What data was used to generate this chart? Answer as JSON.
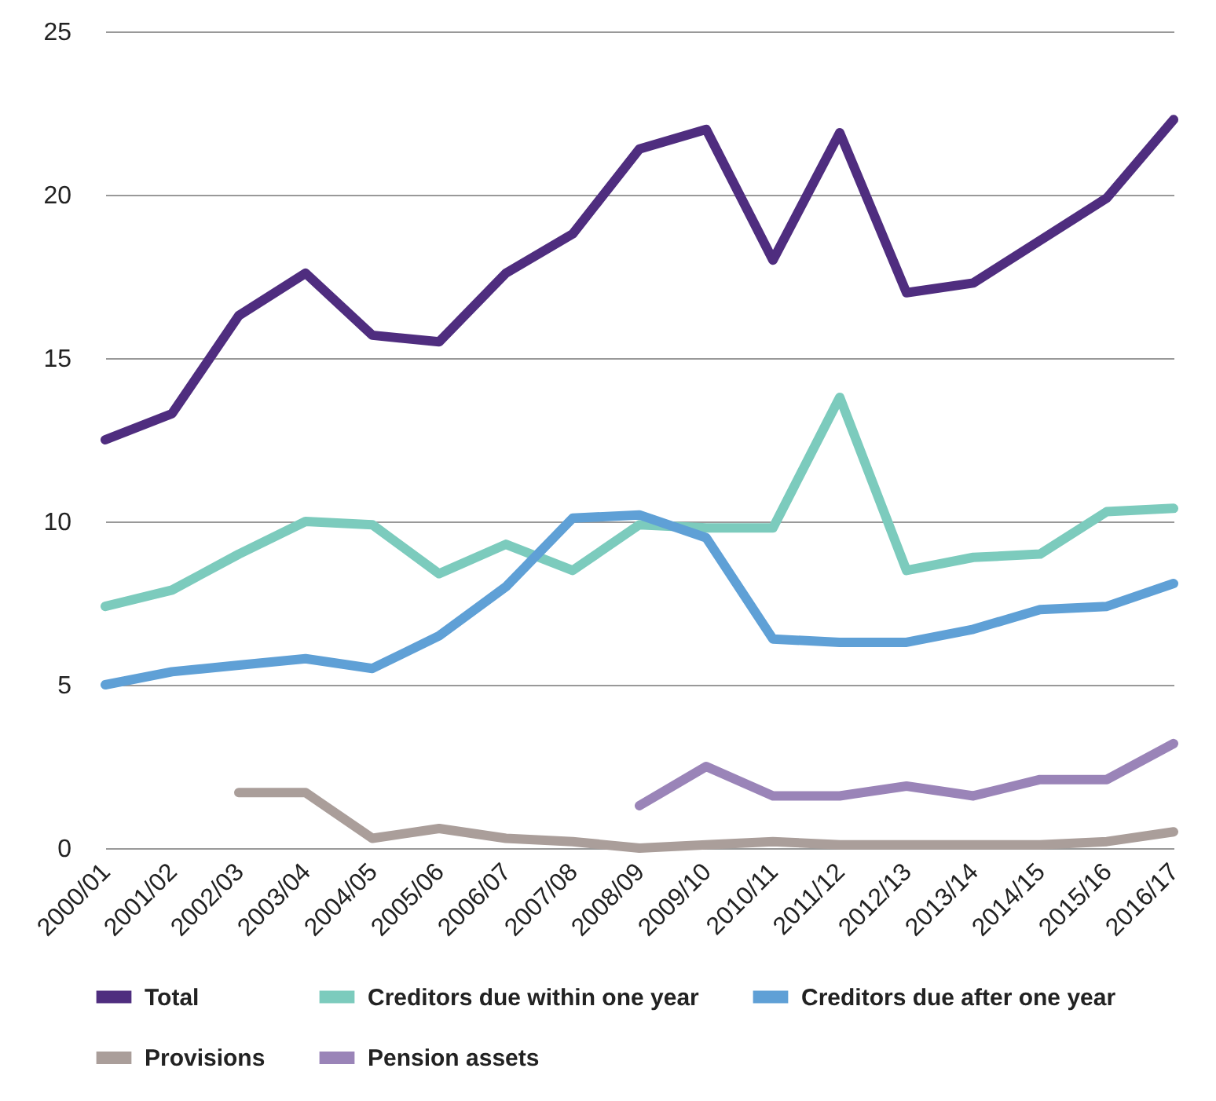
{
  "chart_data": {
    "type": "line",
    "categories": [
      "2000/01",
      "2001/02",
      "2002/03",
      "2003/04",
      "2004/05",
      "2005/06",
      "2006/07",
      "2007/08",
      "2008/09",
      "2009/10",
      "2010/11",
      "2011/12",
      "2012/13",
      "2013/14",
      "2014/15",
      "2015/16",
      "2016/17"
    ],
    "series": [
      {
        "name": "Total",
        "color": "#4f2d7f",
        "values": [
          12.5,
          13.3,
          16.3,
          17.6,
          15.7,
          15.5,
          17.6,
          18.8,
          21.4,
          22.0,
          18.0,
          21.9,
          17.0,
          17.3,
          18.6,
          19.9,
          22.3
        ]
      },
      {
        "name": "Creditors due within one year",
        "color": "#7ccbbd",
        "values": [
          7.4,
          7.9,
          9.0,
          10.0,
          9.9,
          8.4,
          9.3,
          8.5,
          9.9,
          9.8,
          9.8,
          13.8,
          8.5,
          8.9,
          9.0,
          10.3,
          10.4
        ]
      },
      {
        "name": "Creditors due after one year",
        "color": "#5fa0d6",
        "values": [
          5.0,
          5.4,
          5.6,
          5.8,
          5.5,
          6.5,
          8.0,
          10.1,
          10.2,
          9.5,
          6.4,
          6.3,
          6.3,
          6.7,
          7.3,
          7.4,
          8.1
        ]
      },
      {
        "name": "Provisions",
        "color": "#aa9e9a",
        "values": [
          null,
          null,
          1.7,
          1.7,
          0.3,
          0.6,
          0.3,
          0.2,
          0.0,
          0.1,
          0.2,
          0.1,
          0.1,
          0.1,
          0.1,
          0.2,
          0.5
        ]
      },
      {
        "name": "Pension assets",
        "color": "#9a84b8",
        "values": [
          null,
          null,
          null,
          null,
          null,
          null,
          null,
          null,
          1.3,
          2.5,
          1.6,
          1.6,
          1.9,
          1.6,
          2.1,
          2.1,
          3.2
        ]
      }
    ],
    "ylim": [
      0,
      25
    ],
    "yticks": [
      0,
      5,
      10,
      15,
      20,
      25
    ],
    "grid": "y",
    "legend": "bottom",
    "marker": "none",
    "line_style": "solid"
  }
}
